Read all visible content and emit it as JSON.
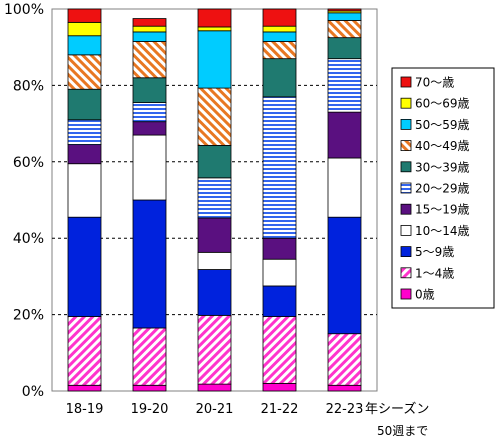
{
  "chart_data": {
    "type": "bar",
    "stacked": true,
    "percent": true,
    "title": "",
    "xlabel": "年シーズン",
    "xlabel_note": "50週まで",
    "ylabel": "",
    "ylim": [
      0,
      100
    ],
    "yticks": [
      "0%",
      "20%",
      "40%",
      "60%",
      "80%",
      "100%"
    ],
    "grid": "horizontal dashed",
    "legend_position": "right",
    "categories": [
      "18-19",
      "19-20",
      "20-21",
      "21-22",
      "22-23"
    ],
    "series": [
      {
        "name": "0歳",
        "color": "#ff00cc",
        "pattern": "solid",
        "values": [
          1.5,
          1.5,
          1.8,
          2.0,
          1.5
        ]
      },
      {
        "name": "1～4歳",
        "color": "#ff33cc",
        "pattern": "diagonal",
        "values": [
          18.0,
          15.0,
          18.0,
          17.5,
          13.5
        ]
      },
      {
        "name": "5～9歳",
        "color": "#0022dd",
        "pattern": "solid",
        "values": [
          26.0,
          33.5,
          12.0,
          8.0,
          30.5
        ]
      },
      {
        "name": "10～14歳",
        "color": "#ffffff",
        "pattern": "solid",
        "values": [
          14.0,
          17.0,
          4.5,
          7.0,
          15.5
        ]
      },
      {
        "name": "15～19歳",
        "color": "#5a1080",
        "pattern": "solid",
        "values": [
          5.0,
          3.5,
          9.0,
          5.5,
          12.0
        ]
      },
      {
        "name": "20～29歳",
        "color": "#3366ee",
        "pattern": "horizontal",
        "values": [
          6.5,
          5.0,
          10.5,
          37.0,
          14.0
        ]
      },
      {
        "name": "30～39歳",
        "color": "#1f7a70",
        "pattern": "solid",
        "values": [
          8.0,
          6.5,
          8.5,
          10.0,
          5.5
        ]
      },
      {
        "name": "40～49歳",
        "color": "#e87722",
        "pattern": "diagonal-rev",
        "values": [
          9.0,
          9.5,
          15.0,
          4.5,
          4.5
        ]
      },
      {
        "name": "50～59歳",
        "color": "#00ccff",
        "pattern": "solid",
        "values": [
          5.0,
          2.5,
          15.0,
          2.5,
          2.0
        ]
      },
      {
        "name": "60～69歳",
        "color": "#ffff00",
        "pattern": "solid",
        "values": [
          3.5,
          1.5,
          1.0,
          1.5,
          0.5
        ]
      },
      {
        "name": "70～歳",
        "color": "#ee1111",
        "pattern": "solid",
        "values": [
          3.5,
          2.0,
          4.7,
          4.5,
          0.5
        ]
      }
    ]
  }
}
